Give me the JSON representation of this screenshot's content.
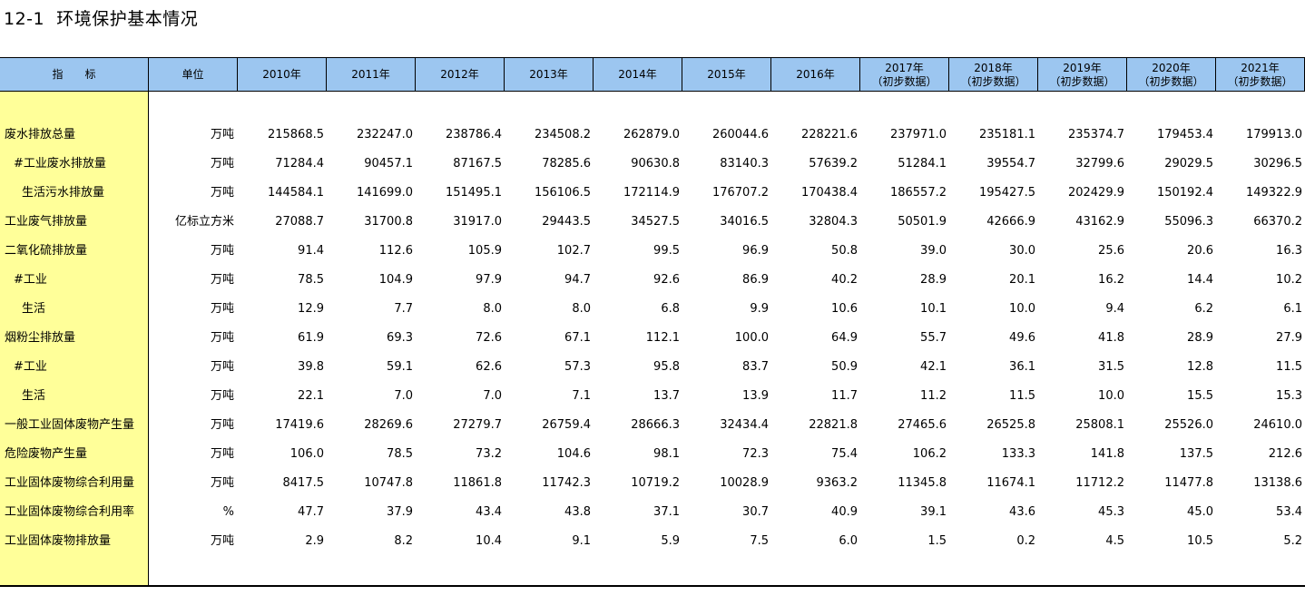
{
  "title": "12-1  环境保护基本情况",
  "header": {
    "indicator": "指　　标",
    "unit": "单位",
    "years": [
      {
        "line1": "2010年",
        "line2": ""
      },
      {
        "line1": "2011年",
        "line2": ""
      },
      {
        "line1": "2012年",
        "line2": ""
      },
      {
        "line1": "2013年",
        "line2": ""
      },
      {
        "line1": "2014年",
        "line2": ""
      },
      {
        "line1": "2015年",
        "line2": ""
      },
      {
        "line1": "2016年",
        "line2": ""
      },
      {
        "line1": "2017年",
        "line2": "（初步数据）"
      },
      {
        "line1": "2018年",
        "line2": "（初步数据）"
      },
      {
        "line1": "2019年",
        "line2": "（初步数据）"
      },
      {
        "line1": "2020年",
        "line2": "（初步数据）"
      },
      {
        "line1": "2021年",
        "line2": "（初步数据）"
      }
    ]
  },
  "rows": [
    {
      "label": "废水排放总量",
      "indent": 0,
      "unit": "万吨",
      "values": [
        "215868.5",
        "232247.0",
        "238786.4",
        "234508.2",
        "262879.0",
        "260044.6",
        "228221.6",
        "237971.0",
        "235181.1",
        "235374.7",
        "179453.4",
        "179913.0"
      ]
    },
    {
      "label": "#工业废水排放量",
      "indent": 1,
      "unit": "万吨",
      "values": [
        "71284.4",
        "90457.1",
        "87167.5",
        "78285.6",
        "90630.8",
        "83140.3",
        "57639.2",
        "51284.1",
        "39554.7",
        "32799.6",
        "29029.5",
        "30296.5"
      ]
    },
    {
      "label": "生活污水排放量",
      "indent": 2,
      "unit": "万吨",
      "values": [
        "144584.1",
        "141699.0",
        "151495.1",
        "156106.5",
        "172114.9",
        "176707.2",
        "170438.4",
        "186557.2",
        "195427.5",
        "202429.9",
        "150192.4",
        "149322.9"
      ]
    },
    {
      "label": "工业废气排放量",
      "indent": 0,
      "unit": "亿标立方米",
      "values": [
        "27088.7",
        "31700.8",
        "31917.0",
        "29443.5",
        "34527.5",
        "34016.5",
        "32804.3",
        "50501.9",
        "42666.9",
        "43162.9",
        "55096.3",
        "66370.2"
      ]
    },
    {
      "label": "二氧化硫排放量",
      "indent": 0,
      "unit": "万吨",
      "values": [
        "91.4",
        "112.6",
        "105.9",
        "102.7",
        "99.5",
        "96.9",
        "50.8",
        "39.0",
        "30.0",
        "25.6",
        "20.6",
        "16.3"
      ]
    },
    {
      "label": "#工业",
      "indent": 1,
      "unit": "万吨",
      "values": [
        "78.5",
        "104.9",
        "97.9",
        "94.7",
        "92.6",
        "86.9",
        "40.2",
        "28.9",
        "20.1",
        "16.2",
        "14.4",
        "10.2"
      ]
    },
    {
      "label": "生活",
      "indent": 2,
      "unit": "万吨",
      "values": [
        "12.9",
        "7.7",
        "8.0",
        "8.0",
        "6.8",
        "9.9",
        "10.6",
        "10.1",
        "10.0",
        "9.4",
        "6.2",
        "6.1"
      ]
    },
    {
      "label": "烟粉尘排放量",
      "indent": 0,
      "unit": "万吨",
      "values": [
        "61.9",
        "69.3",
        "72.6",
        "67.1",
        "112.1",
        "100.0",
        "64.9",
        "55.7",
        "49.6",
        "41.8",
        "28.9",
        "27.9"
      ]
    },
    {
      "label": "#工业",
      "indent": 1,
      "unit": "万吨",
      "values": [
        "39.8",
        "59.1",
        "62.6",
        "57.3",
        "95.8",
        "83.7",
        "50.9",
        "42.1",
        "36.1",
        "31.5",
        "12.8",
        "11.5"
      ]
    },
    {
      "label": "生活",
      "indent": 2,
      "unit": "万吨",
      "values": [
        "22.1",
        "7.0",
        "7.0",
        "7.1",
        "13.7",
        "13.9",
        "11.7",
        "11.2",
        "11.5",
        "10.0",
        "15.5",
        "15.3"
      ]
    },
    {
      "label": "一般工业固体废物产生量",
      "indent": 0,
      "unit": "万吨",
      "values": [
        "17419.6",
        "28269.6",
        "27279.7",
        "26759.4",
        "28666.3",
        "32434.4",
        "22821.8",
        "27465.6",
        "26525.8",
        "25808.1",
        "25526.0",
        "24610.0"
      ]
    },
    {
      "label": "危险废物产生量",
      "indent": 0,
      "unit": "万吨",
      "values": [
        "106.0",
        "78.5",
        "73.2",
        "104.6",
        "98.1",
        "72.3",
        "75.4",
        "106.2",
        "133.3",
        "141.8",
        "137.5",
        "212.6"
      ]
    },
    {
      "label": "工业固体废物综合利用量",
      "indent": 0,
      "unit": "万吨",
      "values": [
        "8417.5",
        "10747.8",
        "11861.8",
        "11742.3",
        "10719.2",
        "10028.9",
        "9363.2",
        "11345.8",
        "11674.1",
        "11712.2",
        "11477.8",
        "13138.6"
      ]
    },
    {
      "label": "工业固体废物综合利用率",
      "indent": 0,
      "unit": "%",
      "values": [
        "47.7",
        "37.9",
        "43.4",
        "43.8",
        "37.1",
        "30.7",
        "40.9",
        "39.1",
        "43.6",
        "45.3",
        "45.0",
        "53.4"
      ]
    },
    {
      "label": "工业固体废物排放量",
      "indent": 0,
      "unit": "万吨",
      "values": [
        "2.9",
        "8.2",
        "10.4",
        "9.1",
        "5.9",
        "7.5",
        "6.0",
        "1.5",
        "0.2",
        "4.5",
        "10.5",
        "5.2"
      ]
    }
  ]
}
